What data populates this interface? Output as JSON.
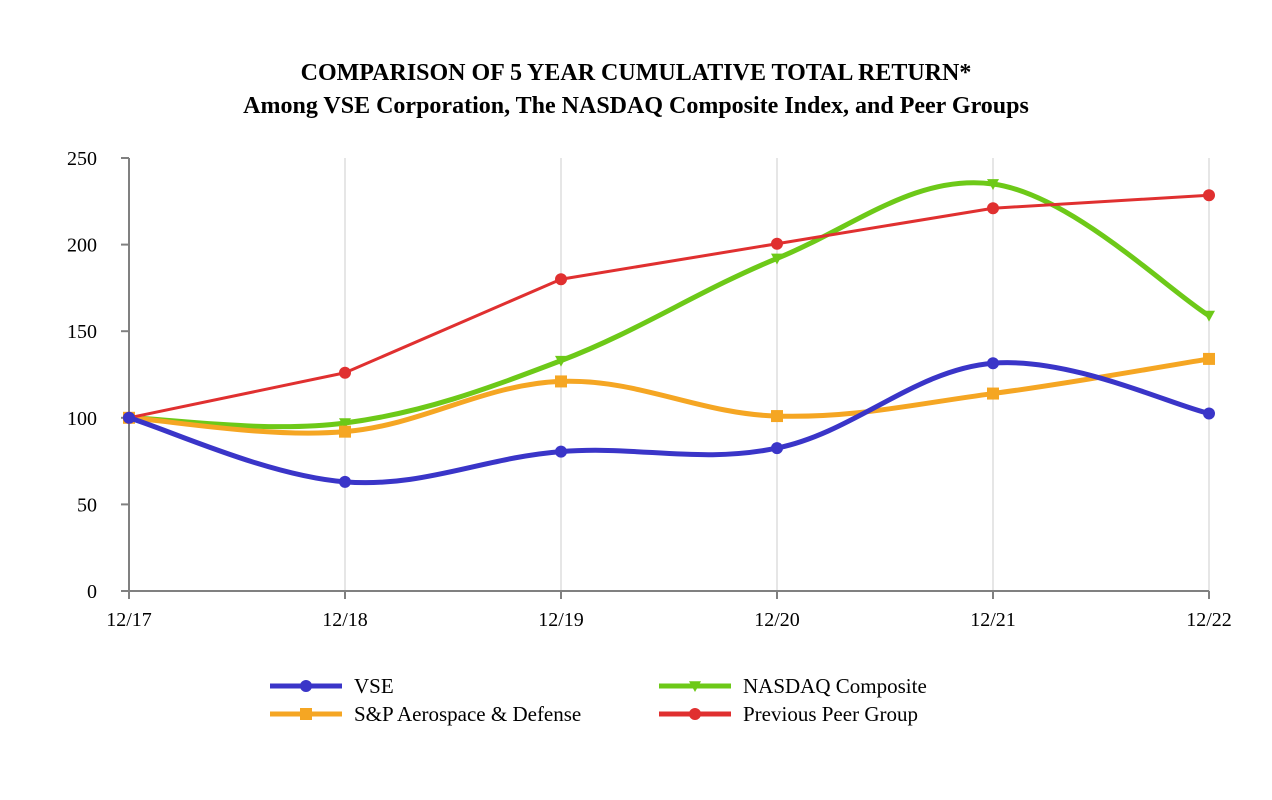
{
  "chart_data": {
    "type": "line",
    "title": "COMPARISON OF 5 YEAR CUMULATIVE TOTAL RETURN*",
    "subtitle": "Among  VSE Corporation, The NASDAQ Composite Index, and Peer Groups",
    "categories": [
      "12/17",
      "12/18",
      "12/19",
      "12/20",
      "12/21",
      "12/22"
    ],
    "ylim": [
      0,
      250
    ],
    "yticks": [
      0,
      50,
      100,
      150,
      200,
      250
    ],
    "grid": "vertical",
    "legend_position": "bottom",
    "series": [
      {
        "name": "VSE",
        "color": "#3a35c8",
        "marker": "circle",
        "values": [
          100,
          63,
          80.5,
          82.5,
          131.5,
          102.5
        ]
      },
      {
        "name": "NASDAQ Composite",
        "color": "#6dc918",
        "marker": "triangle-down",
        "values": [
          100,
          97,
          133,
          192,
          235,
          159
        ]
      },
      {
        "name": "S&P Aerospace & Defense",
        "color": "#f5a623",
        "marker": "square",
        "values": [
          100,
          92,
          121,
          101,
          114,
          134
        ]
      },
      {
        "name": "Previous Peer Group",
        "color": "#e03030",
        "marker": "circle",
        "values": [
          100,
          126,
          180,
          200.5,
          221,
          228.5
        ]
      }
    ]
  }
}
